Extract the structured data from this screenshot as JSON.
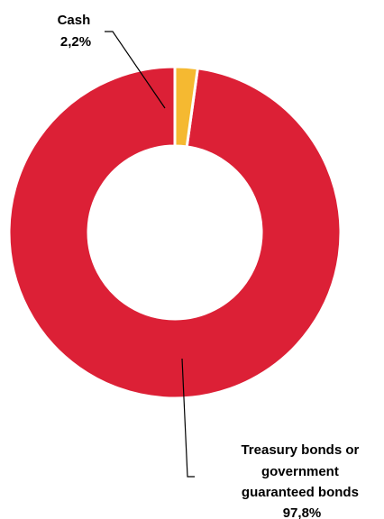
{
  "chart_data": {
    "type": "pie",
    "style": "donut",
    "title": "",
    "slices": [
      {
        "label_lines": [
          "Treasury bonds or",
          "government",
          "guaranteed bonds"
        ],
        "value_label": "97,8%",
        "value": 97.8,
        "color": "#dc2036"
      },
      {
        "label_lines": [
          "Cash"
        ],
        "value_label": "2,2%",
        "value": 2.2,
        "color": "#f5b931"
      }
    ],
    "slice_border_color": "#ffffff",
    "legend": "none"
  }
}
